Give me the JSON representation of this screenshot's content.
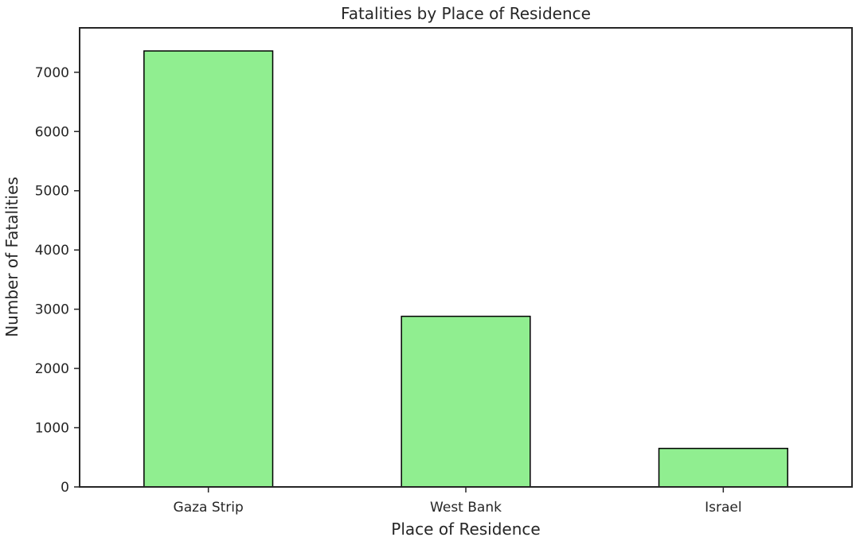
{
  "chart_data": {
    "type": "bar",
    "title": "Fatalities by Place of Residence",
    "xlabel": "Place of Residence",
    "ylabel": "Number of Fatalities",
    "categories": [
      "Gaza Strip",
      "West Bank",
      "Israel"
    ],
    "values": [
      7360,
      2880,
      650
    ],
    "ylim": [
      0,
      7750
    ],
    "yticks": [
      0,
      1000,
      2000,
      3000,
      4000,
      5000,
      6000,
      7000
    ],
    "grid": false,
    "legend": "none",
    "colors": {
      "bar_fill": "#90ee90",
      "bar_edge": "#000000",
      "axis": "#262626",
      "text": "#262626"
    }
  }
}
